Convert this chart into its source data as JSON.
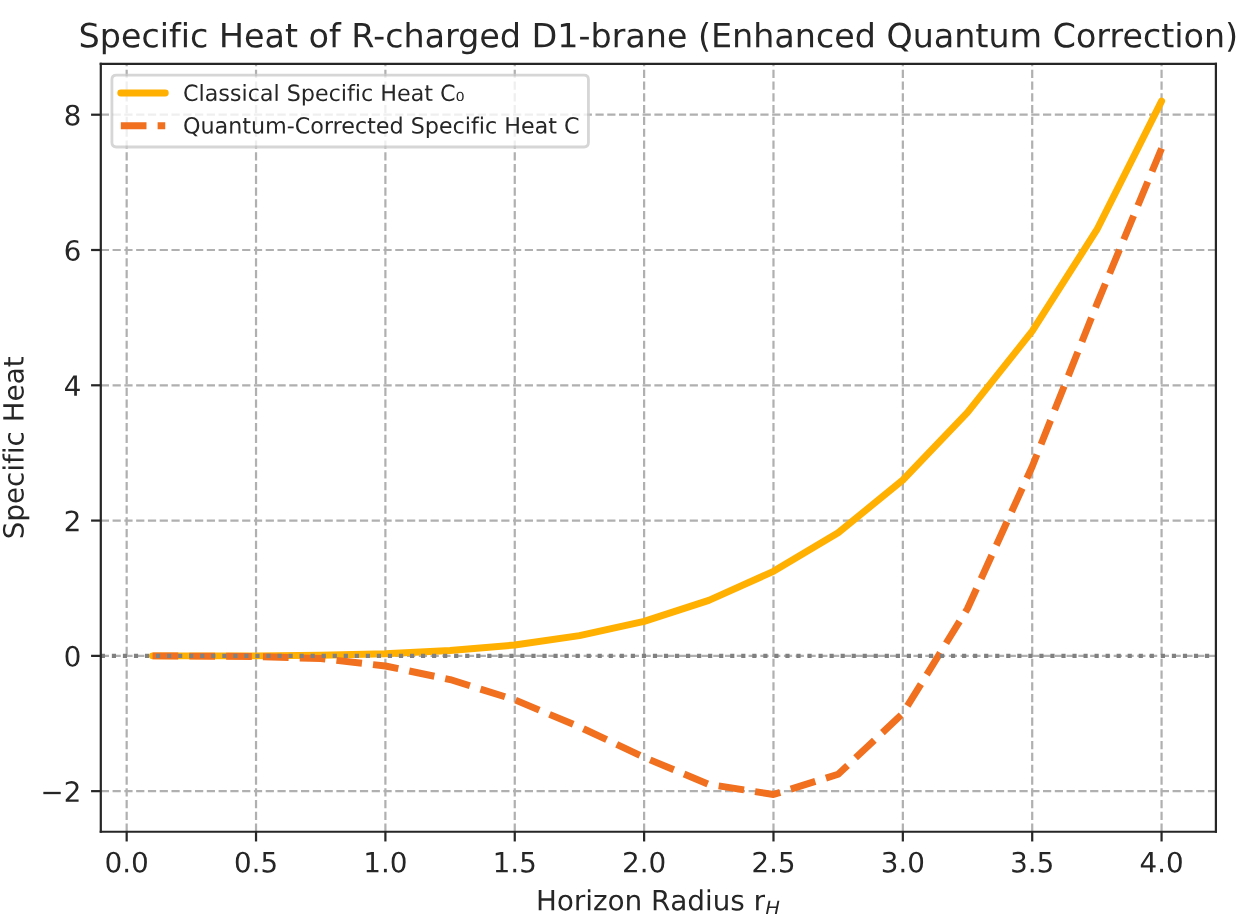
{
  "chart_data": {
    "type": "line",
    "title": "Specific Heat of R-charged D1-brane (Enhanced Quantum Correction)",
    "xlabel": "Horizon Radius r$_{H}$",
    "ylabel": "Specific Heat",
    "xlim": [
      -0.1,
      4.21
    ],
    "ylim": [
      -2.6,
      8.75
    ],
    "xticks": [
      {
        "value": 0,
        "label": "0.0"
      },
      {
        "value": 0.5,
        "label": "0.5"
      },
      {
        "value": 1,
        "label": "1.0"
      },
      {
        "value": 1.5,
        "label": "1.5"
      },
      {
        "value": 2,
        "label": "2.0"
      },
      {
        "value": 2.5,
        "label": "2.5"
      },
      {
        "value": 3,
        "label": "3.0"
      },
      {
        "value": 3.5,
        "label": "3.5"
      },
      {
        "value": 4,
        "label": "4.0"
      }
    ],
    "yticks": [
      {
        "value": -2,
        "label": "−2"
      },
      0,
      2,
      4,
      6,
      8
    ],
    "x": [
      0.1,
      0.5,
      0.75,
      1,
      1.25,
      1.5,
      1.75,
      2,
      2.25,
      2.5,
      2.75,
      3,
      3.25,
      3.5,
      3.75,
      4
    ],
    "series": [
      {
        "name": "Classical Specific Heat C₀",
        "color": "#ffb000",
        "line_style": "solid",
        "values": [
          0,
          0,
          0.01,
          0.03,
          0.08,
          0.16,
          0.3,
          0.51,
          0.82,
          1.25,
          1.82,
          2.6,
          3.6,
          4.8,
          6.3,
          8.2
        ]
      },
      {
        "name": "Quantum-Corrected Specific Heat C",
        "color": "#f07020",
        "line_style": "dashed",
        "values": [
          0,
          -0.01,
          -0.04,
          -0.15,
          -0.35,
          -0.65,
          -1.05,
          -1.5,
          -1.9,
          -2.05,
          -1.75,
          -0.85,
          0.7,
          2.8,
          5.2,
          7.5
        ]
      }
    ],
    "ref_lines": [
      {
        "axis": "y",
        "value": 0,
        "color": "#808080",
        "line_style": "dotted"
      }
    ],
    "grid": true,
    "legend": "top left"
  }
}
